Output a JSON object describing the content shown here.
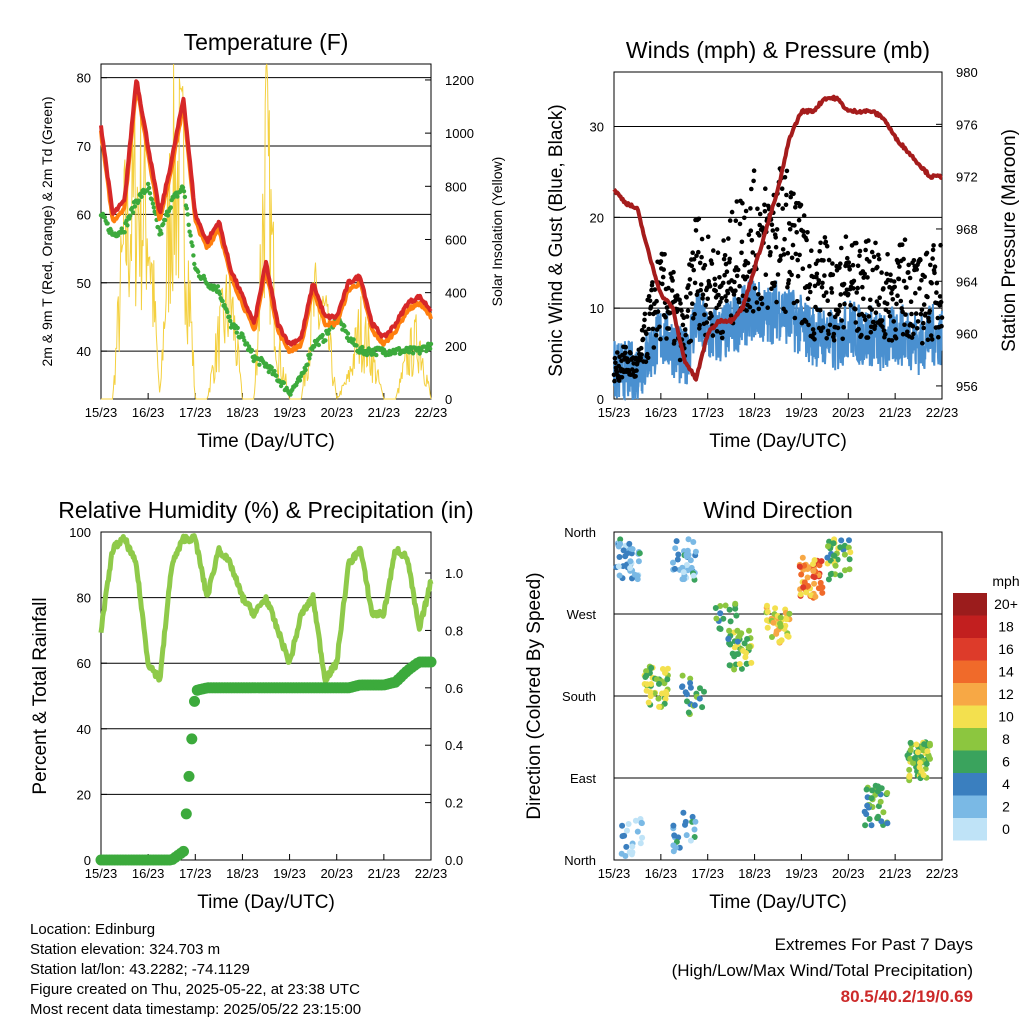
{
  "charts_meta": {
    "xticks": [
      "15/23",
      "16/23",
      "17/23",
      "18/23",
      "19/23",
      "20/23",
      "21/23",
      "22/23"
    ],
    "xlabel": "Time (Day/UTC)"
  },
  "chart_data": [
    {
      "id": "temperature",
      "type": "line",
      "title": "Temperature (F)",
      "xlabel": "Time (Day/UTC)",
      "ylabel": "2m & 9m T (Red, Orange) & 2m Td (Green)",
      "y2label": "Solar Insolation (Yellow)",
      "ylim": [
        33,
        82
      ],
      "yticks": [
        40,
        50,
        60,
        70,
        80
      ],
      "y2lim": [
        0,
        1260
      ],
      "y2ticks": [
        0,
        200,
        400,
        600,
        800,
        1000,
        1200
      ],
      "x": [
        0,
        0.25,
        0.5,
        0.75,
        1,
        1.25,
        1.5,
        1.75,
        2,
        2.25,
        2.5,
        2.75,
        3,
        3.25,
        3.5,
        3.75,
        4,
        4.25,
        4.5,
        4.75,
        5,
        5.25,
        5.5,
        5.75,
        6,
        6.25,
        6.5,
        6.75,
        7
      ],
      "series": [
        {
          "color": "#d62728",
          "values": [
            73,
            60,
            62,
            80,
            70,
            60,
            68,
            77,
            60,
            56,
            59,
            52,
            48,
            44,
            53,
            44,
            41,
            42,
            50,
            45,
            45,
            50,
            51,
            44,
            42,
            44,
            47,
            48,
            46
          ]
        },
        {
          "color": "#ff7f0e",
          "values": [
            72,
            59,
            61,
            79,
            69,
            59,
            67,
            76,
            59,
            55,
            58,
            51,
            47,
            43,
            52,
            43,
            40,
            41,
            49,
            44,
            44,
            49,
            50,
            43,
            41,
            43,
            46,
            47,
            45
          ]
        },
        {
          "color": "#3caa3c",
          "values": [
            60,
            57,
            58,
            62,
            64,
            57,
            62,
            64,
            52,
            50,
            49,
            44,
            42,
            39,
            38,
            36,
            34,
            36,
            41,
            42,
            45,
            42,
            40,
            40,
            40,
            40,
            40,
            40,
            41
          ]
        },
        {
          "color": "#f4d03f",
          "values": [
            0,
            0,
            800,
            1000,
            900,
            0,
            1100,
            1050,
            0,
            0,
            300,
            500,
            0,
            0,
            1200,
            250,
            0,
            0,
            450,
            400,
            0,
            100,
            350,
            200,
            0,
            0,
            200,
            300,
            0
          ]
        }
      ]
    },
    {
      "id": "winds",
      "type": "line",
      "title": "Winds (mph) & Pressure (mb)",
      "xlabel": "Time (Day/UTC)",
      "ylabel": "Sonic Wind & Gust (Blue, Black)",
      "y2label": "Station Pressure (Maroon)",
      "ylim": [
        0,
        36
      ],
      "yticks": [
        0,
        10,
        20,
        30
      ],
      "y2lim": [
        955,
        980
      ],
      "y2ticks": [
        956,
        960,
        964,
        968,
        972,
        976,
        980
      ],
      "x": [
        0,
        0.25,
        0.5,
        0.75,
        1,
        1.25,
        1.5,
        1.75,
        2,
        2.25,
        2.5,
        2.75,
        3,
        3.25,
        3.5,
        3.75,
        4,
        4.25,
        4.5,
        4.75,
        5,
        5.25,
        5.5,
        5.75,
        6,
        6.25,
        6.5,
        6.75,
        7
      ],
      "series": [
        {
          "color": "#000000",
          "values": [
            4,
            5,
            4,
            10,
            14,
            12,
            8,
            18,
            15,
            14,
            17,
            20,
            21,
            20,
            22,
            21,
            18,
            14,
            15,
            13,
            16,
            14,
            15,
            13,
            14,
            15,
            13,
            14,
            15
          ]
        },
        {
          "color": "#4a90d0",
          "values": [
            3,
            3,
            3,
            5,
            7,
            6,
            4,
            9,
            7,
            7,
            8,
            9,
            10,
            9,
            10,
            9,
            8,
            7,
            7,
            6,
            8,
            7,
            7,
            6,
            7,
            7,
            6,
            7,
            7
          ]
        },
        {
          "color": "#a51c1c",
          "values": [
            971,
            970,
            969.5,
            966,
            963,
            962,
            958,
            956.5,
            960,
            961,
            961,
            962,
            965,
            968,
            971,
            975,
            977,
            977,
            978,
            978,
            977,
            977,
            977,
            976.5,
            975,
            974,
            973,
            972,
            972
          ]
        }
      ]
    },
    {
      "id": "humidity",
      "type": "line",
      "title": "Relative Humidity (%) & Precipitation (in)",
      "xlabel": "Time (Day/UTC)",
      "ylabel": "Percent & Total Rainfall",
      "ylim": [
        0,
        100
      ],
      "yticks": [
        0,
        20,
        40,
        60,
        80,
        100
      ],
      "y2lim": [
        0,
        1.143
      ],
      "y2ticks": [
        0.0,
        0.2,
        0.4,
        0.6,
        0.8,
        1.0
      ],
      "x": [
        0,
        0.25,
        0.5,
        0.75,
        1,
        1.25,
        1.5,
        1.75,
        2,
        2.25,
        2.5,
        2.75,
        3,
        3.25,
        3.5,
        3.75,
        4,
        4.25,
        4.5,
        4.75,
        5,
        5.25,
        5.5,
        5.75,
        6,
        6.25,
        6.5,
        6.75,
        7
      ],
      "series": [
        {
          "color": "#8fca4a",
          "values": [
            70,
            95,
            98,
            90,
            60,
            55,
            90,
            98,
            98,
            80,
            95,
            90,
            80,
            75,
            80,
            70,
            60,
            75,
            80,
            55,
            60,
            90,
            95,
            75,
            75,
            95,
            92,
            70,
            85
          ]
        },
        {
          "color": "#3caa3c",
          "values": [
            0,
            0,
            0,
            0,
            0,
            0,
            0,
            0.03,
            0.59,
            0.6,
            0.6,
            0.6,
            0.6,
            0.6,
            0.6,
            0.6,
            0.6,
            0.6,
            0.6,
            0.6,
            0.6,
            0.6,
            0.61,
            0.61,
            0.61,
            0.62,
            0.66,
            0.69,
            0.69
          ]
        }
      ]
    },
    {
      "id": "wind_direction",
      "type": "scatter",
      "title": "Wind Direction",
      "xlabel": "Time (Day/UTC)",
      "ylabel": "Direction (Colored By Speed)",
      "ylim": [
        0,
        360
      ],
      "yticks": [
        "North",
        "East",
        "South",
        "West",
        "North"
      ],
      "colorbar": {
        "title": "mph",
        "labels": [
          "20+",
          "18",
          "16",
          "14",
          "12",
          "10",
          "8",
          "6",
          "4",
          "2",
          "0"
        ],
        "colors": [
          "#9b1c1c",
          "#c21f1f",
          "#dd3b2a",
          "#f06a2a",
          "#f7a845",
          "#f3e04e",
          "#8cc63f",
          "#3aa35d",
          "#3a7fbf",
          "#7ab9e5",
          "#bfe3f7"
        ]
      },
      "clusters": [
        {
          "x": 0.3,
          "y": 330,
          "speed": 3,
          "n": 40
        },
        {
          "x": 1.5,
          "y": 330,
          "speed": 3,
          "n": 35
        },
        {
          "x": 0.9,
          "y": 190,
          "speed": 8,
          "n": 45
        },
        {
          "x": 1.7,
          "y": 180,
          "speed": 6,
          "n": 20
        },
        {
          "x": 2.7,
          "y": 230,
          "speed": 8,
          "n": 40
        },
        {
          "x": 2.4,
          "y": 260,
          "speed": 6,
          "n": 20
        },
        {
          "x": 3.5,
          "y": 260,
          "speed": 10,
          "n": 40
        },
        {
          "x": 4.2,
          "y": 310,
          "speed": 13,
          "n": 50
        },
        {
          "x": 4.8,
          "y": 330,
          "speed": 7,
          "n": 35
        },
        {
          "x": 5.6,
          "y": 60,
          "speed": 6,
          "n": 35
        },
        {
          "x": 6.5,
          "y": 110,
          "speed": 8,
          "n": 70
        },
        {
          "x": 0.4,
          "y": 25,
          "speed": 2,
          "n": 20
        },
        {
          "x": 1.5,
          "y": 30,
          "speed": 3,
          "n": 20
        }
      ]
    }
  ],
  "info": {
    "location": "Location: Edinburg",
    "elevation": "Station elevation: 324.703 m",
    "latlon": "Station lat/lon: 43.2282; -74.1129",
    "created": "Figure created on Thu, 2025-05-22, at 23:38 UTC",
    "recent": "Most recent data timestamp: 2025/05/22 23:15:00"
  },
  "extremes": {
    "title": "Extremes For Past 7 Days",
    "subtitle": "(High/Low/Max Wind/Total Precipitation)",
    "value": "80.5/40.2/19/0.69"
  }
}
